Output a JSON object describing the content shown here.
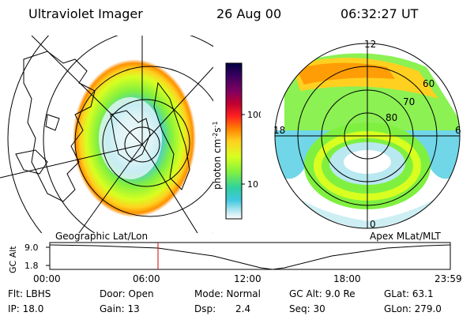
{
  "header": {
    "title": "Ultraviolet Imager",
    "date": "26 Aug 00",
    "time": "06:32:27 UT"
  },
  "colorbar": {
    "unit": "photon cm",
    "unit_exp1": "-2",
    "unit_mid": "s",
    "unit_exp2": "-1",
    "ticks": [
      "100",
      "10"
    ],
    "colors": [
      "#000040",
      "#3a0060",
      "#800060",
      "#c00030",
      "#ff2020",
      "#ff8000",
      "#ffd020",
      "#d8ff20",
      "#80f040",
      "#30d0a0",
      "#40c8e0",
      "#b8e8f0",
      "#ffffff"
    ]
  },
  "left_panel": {
    "label": "Geographic Lat/Lon"
  },
  "right_panel": {
    "label": "Apex MLat/MLT",
    "mlt_labels": [
      "12",
      "18",
      "6",
      "0"
    ],
    "mlat_labels": [
      "60",
      "70",
      "80"
    ]
  },
  "altitude_plot": {
    "ylabel": "GC Alt",
    "yticks": [
      "9.0",
      "1.8"
    ],
    "xticks": [
      "00:00",
      "06:00",
      "12:00",
      "18:00",
      "23:59"
    ],
    "marker_time": "06:32:27"
  },
  "footer": {
    "filter": "Flt: LBHS",
    "ip": "IP: 18.0",
    "door": "Door: Open",
    "gain": "Gain: 13",
    "mode": "Mode: Normal",
    "dsp_label": "Dsp:",
    "dsp_value": "2.4",
    "gc_alt": "GC Alt: 9.0 Re",
    "seq": "Seq: 30",
    "glat": "GLat: 63.1",
    "glon": "GLon: 279.0"
  }
}
